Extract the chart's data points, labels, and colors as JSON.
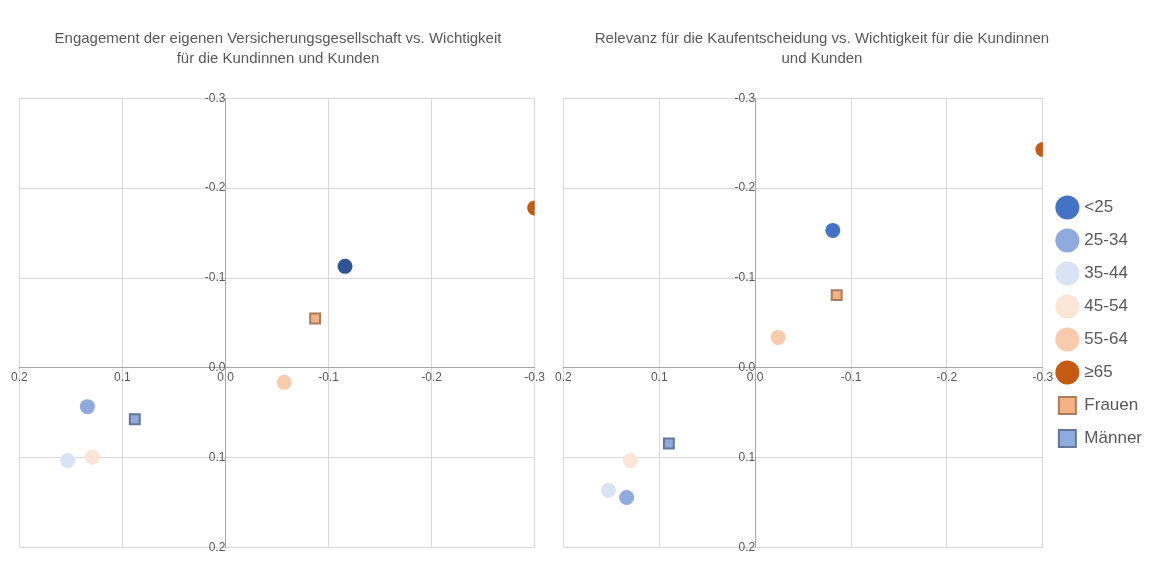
{
  "chart_data": [
    {
      "type": "scatter",
      "title": "Engagement der eigenen Versicherungsgesellschaft vs. Wichtigkeit für die Kundinnen und Kunden",
      "xlim": [
        0.2,
        -0.3
      ],
      "ylim": [
        0.2,
        -0.3
      ],
      "xticks": [
        0.2,
        0.1,
        {
          "value": 0,
          "label": "0.0"
        },
        -0.1,
        -0.2,
        -0.3
      ],
      "yticks": [
        0.2,
        0.1,
        {
          "value": 0,
          "label": "0.0"
        },
        -0.1,
        -0.2,
        -0.3
      ],
      "grid": true,
      "legend": false,
      "series": [
        {
          "color": "#2f5597",
          "marker": "circle",
          "x": [
            -0.116
          ],
          "values": [
            -0.113
          ]
        },
        {
          "color": "#8faadc",
          "marker": "circle",
          "x": [
            0.134
          ],
          "values": [
            0.043
          ]
        },
        {
          "color": "#dae3f3",
          "marker": "circle",
          "x": [
            0.153
          ],
          "values": [
            0.103
          ]
        },
        {
          "color": "#fbe5d6",
          "marker": "circle",
          "x": [
            0.129
          ],
          "values": [
            0.099
          ]
        },
        {
          "color": "#f8cbad",
          "marker": "circle",
          "x": [
            -0.057
          ],
          "values": [
            0.016
          ]
        },
        {
          "color": "#c55a11",
          "marker": "circle",
          "x": [
            -0.3
          ],
          "values": [
            -0.178
          ]
        },
        {
          "color": "#f4b183",
          "marker": "square",
          "x": [
            -0.087
          ],
          "values": [
            -0.055
          ]
        },
        {
          "color": "#8faadc",
          "marker": "square",
          "x": [
            0.088
          ],
          "values": [
            0.057
          ]
        }
      ]
    },
    {
      "type": "scatter",
      "title": "Relevanz für die Kaufentscheidung vs. Wichtigkeit für die Kundinnen und Kunden",
      "xlim": [
        0.2,
        -0.3
      ],
      "ylim": [
        0.2,
        -0.3
      ],
      "xticks": [
        0.2,
        0.1,
        {
          "value": 0,
          "label": "0.0"
        },
        -0.1,
        -0.2,
        -0.3
      ],
      "yticks": [
        0.2,
        0.1,
        {
          "value": 0,
          "label": "0.0"
        },
        -0.1,
        -0.2,
        -0.3
      ],
      "grid": true,
      "legend": "right",
      "series": [
        {
          "name": "<25",
          "color": "#4472c4",
          "marker": "circle",
          "x": [
            -0.081
          ],
          "values": [
            -0.153
          ]
        },
        {
          "name": "25-34",
          "color": "#8faadc",
          "marker": "circle",
          "x": [
            0.134
          ],
          "values": [
            0.144
          ]
        },
        {
          "name": "35-44",
          "color": "#dae3f3",
          "marker": "circle",
          "x": [
            0.153
          ],
          "values": [
            0.136
          ]
        },
        {
          "name": "45-54",
          "color": "#fbe5d6",
          "marker": "circle",
          "x": [
            0.13
          ],
          "values": [
            0.103
          ]
        },
        {
          "name": "55-64",
          "color": "#f8cbad",
          "marker": "circle",
          "x": [
            -0.024
          ],
          "values": [
            -0.034
          ]
        },
        {
          "name": "≥65",
          "color": "#c55a11",
          "marker": "circle",
          "x": [
            -0.3
          ],
          "values": [
            -0.243
          ]
        },
        {
          "name": "Frauen",
          "color": "#f4b183",
          "marker": "square",
          "x": [
            -0.085
          ],
          "values": [
            -0.081
          ]
        },
        {
          "name": "Männer",
          "color": "#8faadc",
          "marker": "square",
          "x": [
            0.09
          ],
          "values": [
            0.084
          ]
        }
      ]
    }
  ]
}
